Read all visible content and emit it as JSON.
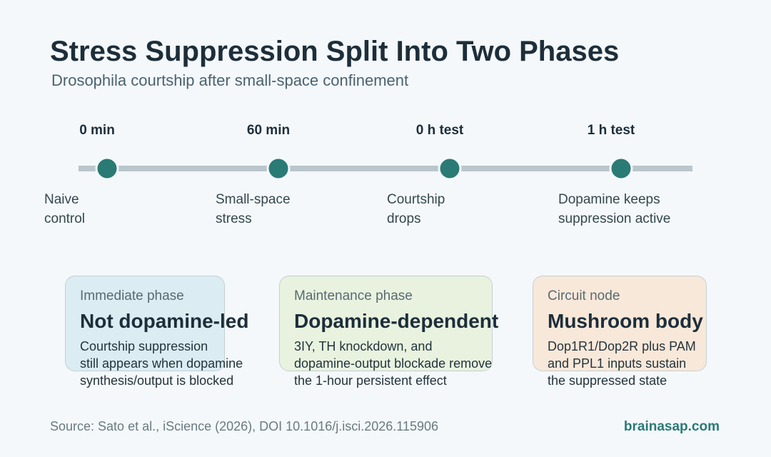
{
  "header": {
    "title": "Stress Suppression Split Into Two Phases",
    "subtitle": "Drosophila courtship after small-space confinement"
  },
  "timeline": [
    {
      "time": "0 min",
      "description": [
        "Naive",
        "control"
      ]
    },
    {
      "time": "60 min",
      "description": [
        "Small-space",
        "stress"
      ]
    },
    {
      "time": "0 h test",
      "description": [
        "Courtship",
        "drops"
      ]
    },
    {
      "time": "1 h test",
      "description": [
        "Dopamine keeps",
        "suppression active"
      ]
    }
  ],
  "cards": [
    {
      "label": "Immediate phase",
      "heading": "Not dopamine-led",
      "body": [
        "Courtship suppression",
        "still appears when dopamine",
        "synthesis/output is blocked"
      ]
    },
    {
      "label": "Maintenance phase",
      "heading": "Dopamine-dependent",
      "body": [
        "3IY, TH knockdown, and",
        "dopamine-output blockade remove",
        "the 1-hour persistent effect"
      ]
    },
    {
      "label": "Circuit node",
      "heading": "Mushroom body",
      "body": [
        "Dop1R1/Dop2R plus PAM",
        "and PPL1 inputs sustain",
        "the suppressed state"
      ]
    }
  ],
  "footer": {
    "source": "Source: Sato et al., iScience (2026), DOI 10.1016/j.isci.2026.115906",
    "brand": "brainasap.com"
  }
}
